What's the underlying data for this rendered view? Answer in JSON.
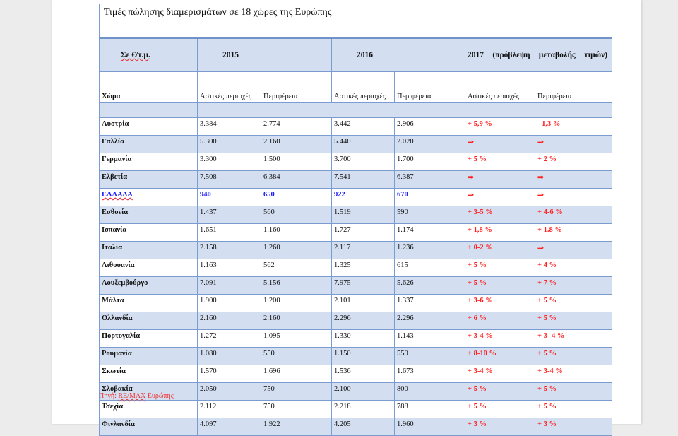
{
  "title": "Τιμές πώλησης διαμερισμάτων σε 18 χώρες της Ευρώπης",
  "header": {
    "unit": "Σε €/τ.μ.",
    "y2015": "2015",
    "y2016": "2016",
    "y2017": "2017 (πρόβλεψη μεταβολής τιμών)"
  },
  "subheader": {
    "country": "Χώρα",
    "urban": "Αστικές περιοχές",
    "regional": "Περιφέρεια"
  },
  "colors": {
    "shade": "#d3dff0",
    "border": "#7a9cd0",
    "change": "#ff1f1f",
    "highlight": "#1a1aff"
  },
  "arrow_icon": "⇒",
  "rows": [
    {
      "country": "Αυστρία",
      "u2015": "3.384",
      "r2015": "2.774",
      "u2016": "3.442",
      "r2016": "2.906",
      "u2017": "+ 5,9 %",
      "r2017": "- 1,3 %"
    },
    {
      "country": "Γαλλία",
      "u2015": "5.300",
      "r2015": "2.160",
      "u2016": "5.440",
      "r2016": "2.020",
      "u2017": "⇒",
      "r2017": "⇒"
    },
    {
      "country": "Γερμανία",
      "u2015": "3.300",
      "r2015": "1.500",
      "u2016": "3.700",
      "r2016": "1.700",
      "u2017": "+ 5 %",
      "r2017": "+ 2 %"
    },
    {
      "country": "Ελβετία",
      "u2015": "7.508",
      "r2015": "6.384",
      "u2016": "7.541",
      "r2016": "6.387",
      "u2017": "⇒",
      "r2017": "⇒"
    },
    {
      "country": "ΕΛΛΑΔΑ",
      "u2015": "940",
      "r2015": "650",
      "u2016": "922",
      "r2016": "670",
      "u2017": "⇒",
      "r2017": "⇒"
    },
    {
      "country": "Εσθονία",
      "u2015": "1.437",
      "r2015": "560",
      "u2016": "1.519",
      "r2016": "590",
      "u2017": "+ 3-5 %",
      "r2017": "+ 4-6 %"
    },
    {
      "country": "Ισπανία",
      "u2015": "1.651",
      "r2015": "1.160",
      "u2016": "1.727",
      "r2016": "1.174",
      "u2017": "+ 1,8 %",
      "r2017": "+ 1.8 %"
    },
    {
      "country": "Ιταλία",
      "u2015": "2.158",
      "r2015": "1.260",
      "u2016": "2.117",
      "r2016": "1.236",
      "u2017": "+ 0-2 %",
      "r2017": "⇒"
    },
    {
      "country": "Λιθουανία",
      "u2015": "1.163",
      "r2015": "562",
      "u2016": "1.325",
      "r2016": "615",
      "u2017": "+ 5 %",
      "r2017": "+ 4 %"
    },
    {
      "country": "Λουξεμβούργο",
      "u2015": "7.091",
      "r2015": "5.156",
      "u2016": "7.975",
      "r2016": "5.626",
      "u2017": "+ 5 %",
      "r2017": "+ 7 %"
    },
    {
      "country": "Μάλτα",
      "u2015": "1.900",
      "r2015": "1.200",
      "u2016": "2.101",
      "r2016": "1.337",
      "u2017": "+ 3-6 %",
      "r2017": "+ 5 %"
    },
    {
      "country": "Ολλανδία",
      "u2015": "2.160",
      "r2015": "2.160",
      "u2016": "2.296",
      "r2016": "2.296",
      "u2017": "+ 6 %",
      "r2017": "+ 5 %"
    },
    {
      "country": "Πορτογαλία",
      "u2015": "1.272",
      "r2015": "1.095",
      "u2016": "1.330",
      "r2016": "1.143",
      "u2017": "+ 3-4 %",
      "r2017": "+ 3- 4 %"
    },
    {
      "country": "Ρουμανία",
      "u2015": "1.080",
      "r2015": "550",
      "u2016": "1.150",
      "r2016": "550",
      "u2017": "+ 8-10 %",
      "r2017": "+ 5 %"
    },
    {
      "country": "Σκωτία",
      "u2015": "1.570",
      "r2015": "1.696",
      "u2016": "1.536",
      "r2016": "1.673",
      "u2017": "+ 3-4 %",
      "r2017": "+ 3-4 %"
    },
    {
      "country": "Σλοβακία",
      "u2015": "2.050",
      "r2015": "750",
      "u2016": "2.100",
      "r2016": "800",
      "u2017": "+ 5 %",
      "r2017": "+ 5 %"
    },
    {
      "country": "Τσεχία",
      "u2015": "2.112",
      "r2015": "750",
      "u2016": "2.218",
      "r2016": "788",
      "u2017": "+ 5 %",
      "r2017": "+ 5 %"
    },
    {
      "country": "Φινλανδία",
      "u2015": "4.097",
      "r2015": "1.922",
      "u2016": "4.205",
      "r2016": "1.960",
      "u2017": "+ 3 %",
      "r2017": "+ 3 %"
    }
  ],
  "source": {
    "label": "Πηγή:",
    "org": "RE/MAX",
    "suffix": "Ευρώπης"
  }
}
